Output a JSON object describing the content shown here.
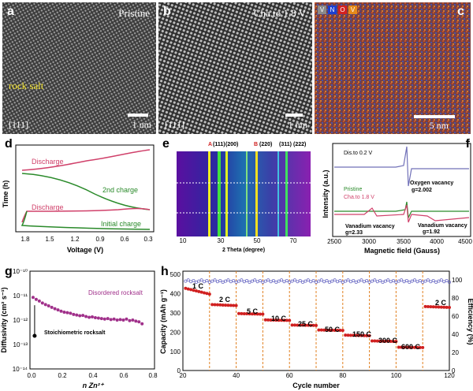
{
  "panel_a": {
    "label": "a",
    "tag": "Pristine",
    "region": "rock salt",
    "zone": "[111]",
    "scale": "1 nm"
  },
  "panel_b": {
    "label": "b",
    "tag": "Cha.to 1.8 V",
    "zone": "[111]",
    "scale": "1 nm"
  },
  "panel_c": {
    "label": "c",
    "legend": [
      "V",
      "N",
      "O",
      "V"
    ],
    "legend_colors": [
      "#8a8a8a",
      "#1c3fd0",
      "#d42020",
      "#e58a1a"
    ],
    "scale": "5 nm"
  },
  "panel_d": {
    "label": "d",
    "ylabel": "Time (h)",
    "xlabel": "Voltage (V)",
    "annotations": [
      "Discharge",
      "2nd charge",
      "Discharge",
      "Initial charge"
    ],
    "chart_data": {
      "type": "line",
      "xlim": [
        1.8,
        0.3
      ],
      "xticks": [
        "1.8",
        "1.5",
        "1.2",
        "0.9",
        "0.6",
        "0.3"
      ]
    }
  },
  "panel_e": {
    "label": "e",
    "xlabel": "2 Theta (degree)",
    "xticks": [
      "10",
      "30",
      "50",
      "70"
    ],
    "peaks": [
      "A",
      "(111)",
      "(200)",
      "B",
      "(220)",
      "(311)",
      "(222)"
    ]
  },
  "panel_f": {
    "label": "f",
    "ylabel": "Intensity (a.u.)",
    "xlabel": "Magnetic field (Gauss)",
    "legend": [
      "Dis.to 0.2 V",
      "Pristine",
      "Cha.to 1.8 V"
    ],
    "annotations": [
      "Oxygen vacancy",
      "g=2.002",
      "Vanadium vacancy",
      "g=2.33",
      "Vanadium vacancy",
      "g=1.92"
    ],
    "xticks": [
      "2500",
      "3000",
      "3500",
      "4000",
      "4500"
    ]
  },
  "panel_g": {
    "label": "g",
    "ylabel": "Diffusivity (cm² s⁻¹)",
    "xlabel": "n Zn²⁺",
    "series_labels": [
      "Disordered rocksalt",
      "Stoichiometric rocksalt"
    ],
    "yticks": [
      "10⁻¹⁰",
      "10⁻¹¹",
      "10⁻¹²",
      "10⁻¹³",
      "10⁻¹⁴"
    ],
    "xticks": [
      "0.0",
      "0.2",
      "0.4",
      "0.6",
      "0.8"
    ],
    "chart_data": {
      "type": "scatter",
      "ylog": true,
      "ylim": [
        1e-14,
        1e-10
      ],
      "xlim": [
        0,
        0.8
      ],
      "x": [
        0.02,
        0.04,
        0.06,
        0.08,
        0.1,
        0.12,
        0.14,
        0.16,
        0.18,
        0.2,
        0.22,
        0.24,
        0.26,
        0.28,
        0.3,
        0.32,
        0.34,
        0.36,
        0.38,
        0.4,
        0.42,
        0.44,
        0.46,
        0.48,
        0.5,
        0.52,
        0.54,
        0.56,
        0.58,
        0.6,
        0.62,
        0.64,
        0.66,
        0.68,
        0.7,
        0.72
      ],
      "y": [
        8.5e-12,
        7e-12,
        6e-12,
        5e-12,
        4.3e-12,
        3.8e-12,
        3.3e-12,
        2.9e-12,
        2.6e-12,
        2.3e-12,
        2.1e-12,
        2e-12,
        1.9e-12,
        1.7e-12,
        1.6e-12,
        1.5e-12,
        1.55e-12,
        1.4e-12,
        1.3e-12,
        1.35e-12,
        1.25e-12,
        1.2e-12,
        1.15e-12,
        1.1e-12,
        1.15e-12,
        1.05e-12,
        1.1e-12,
        1e-12,
        1.05e-12,
        1e-12,
        1.1e-12,
        9.5e-13,
        1e-12,
        9e-13,
        8.5e-13,
        7e-13
      ],
      "stoich": {
        "x": 0.03,
        "y": 1e-12
      }
    }
  },
  "panel_h": {
    "label": "h",
    "ylabel": "Capacity (mAh g⁻¹)",
    "ylabel2": "Efficiency (%)",
    "xlabel": "Cycle number",
    "rates": [
      "1 C",
      "2 C",
      "5 C",
      "10 C",
      "25 C",
      "50 C",
      "150 C",
      "300 C",
      "600 C",
      "2 C"
    ],
    "xticks": [
      "20",
      "40",
      "60",
      "80",
      "100",
      "120"
    ],
    "yticks": [
      "0",
      "100",
      "200",
      "300",
      "400",
      "500"
    ],
    "y2ticks": [
      "0",
      "20",
      "40",
      "60",
      "80",
      "100"
    ],
    "chart_data": {
      "type": "scatter",
      "xlim": [
        20,
        120
      ],
      "ylim": [
        0,
        520
      ],
      "y2lim": [
        0,
        110
      ],
      "segments": [
        {
          "start": 21,
          "end": 30,
          "from": 430,
          "to": 400
        },
        {
          "start": 31,
          "end": 40,
          "from": 345,
          "to": 340
        },
        {
          "start": 41,
          "end": 50,
          "from": 298,
          "to": 295
        },
        {
          "start": 51,
          "end": 60,
          "from": 265,
          "to": 262
        },
        {
          "start": 61,
          "end": 70,
          "from": 238,
          "to": 236
        },
        {
          "start": 71,
          "end": 80,
          "from": 212,
          "to": 210
        },
        {
          "start": 81,
          "end": 90,
          "from": 185,
          "to": 182
        },
        {
          "start": 91,
          "end": 100,
          "from": 155,
          "to": 152
        },
        {
          "start": 101,
          "end": 110,
          "from": 122,
          "to": 120
        },
        {
          "start": 111,
          "end": 120,
          "from": 335,
          "to": 330
        }
      ],
      "efficiency": 99,
      "dividers": [
        30,
        40,
        50,
        60,
        70,
        80,
        90,
        100,
        110
      ]
    }
  }
}
